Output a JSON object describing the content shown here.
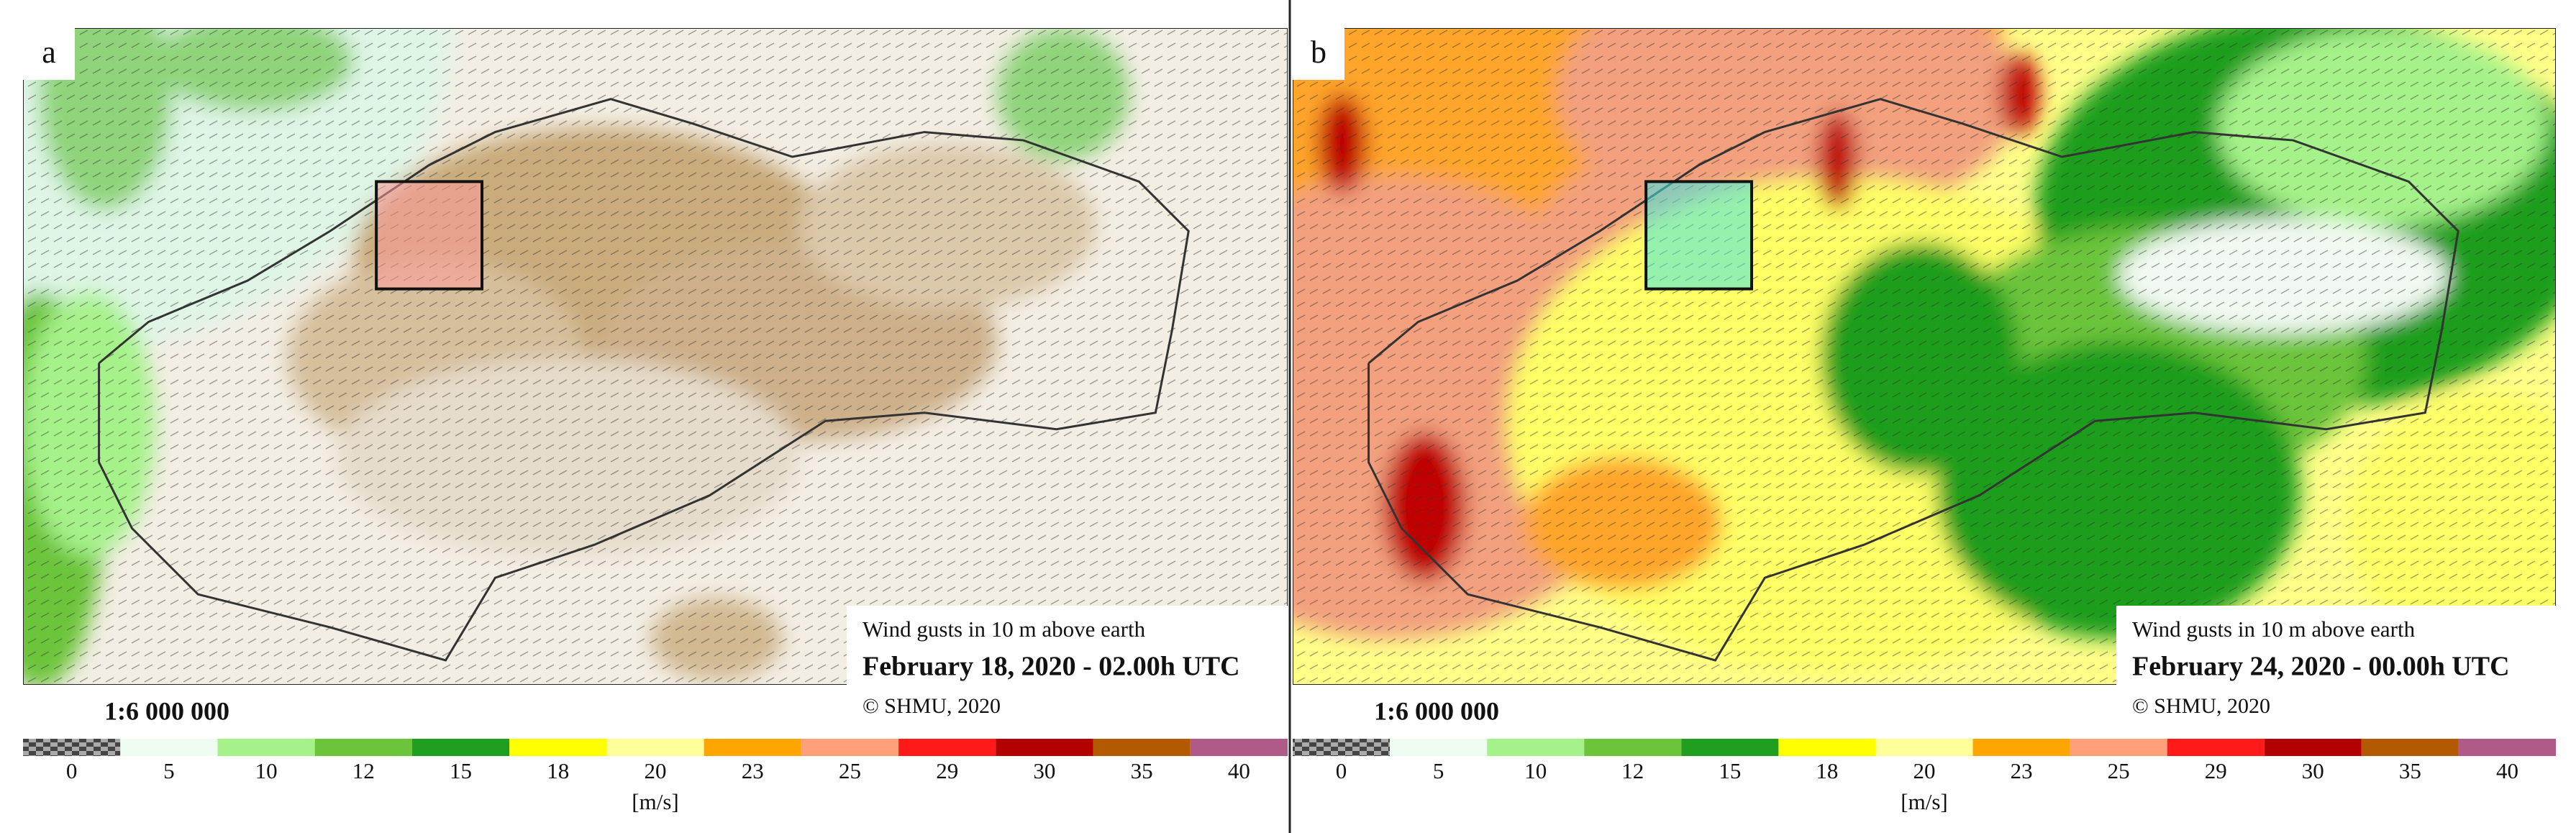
{
  "panels": [
    {
      "label": "a",
      "caption": {
        "line1": "Wind gusts in 10 m above earth",
        "line2": "February 18, 2020 - 02.00h UTC",
        "line3": "© SHMU, 2020"
      },
      "scale": "1:6 000 000"
    },
    {
      "label": "b",
      "caption": {
        "line1": "Wind gusts in 10 m above earth",
        "line2": "February 24, 2020 - 00.00h UTC",
        "line3": "© SHMU, 2020"
      },
      "scale": "1:6 000 000"
    }
  ],
  "colorbar": {
    "labels": [
      "0",
      "5",
      "10",
      "12",
      "15",
      "18",
      "20",
      "23",
      "25",
      "29",
      "30",
      "35",
      "40"
    ],
    "colors": [
      "#7f7f7f",
      "#effcf2",
      "#a6f28a",
      "#6cc43a",
      "#1f9e1f",
      "#ffff00",
      "#ffff99",
      "#ffa500",
      "#ffa07a",
      "#ff1a1a",
      "#b30000",
      "#b35a00",
      "#b05a8a"
    ]
  },
  "unit": "[m/s]"
}
